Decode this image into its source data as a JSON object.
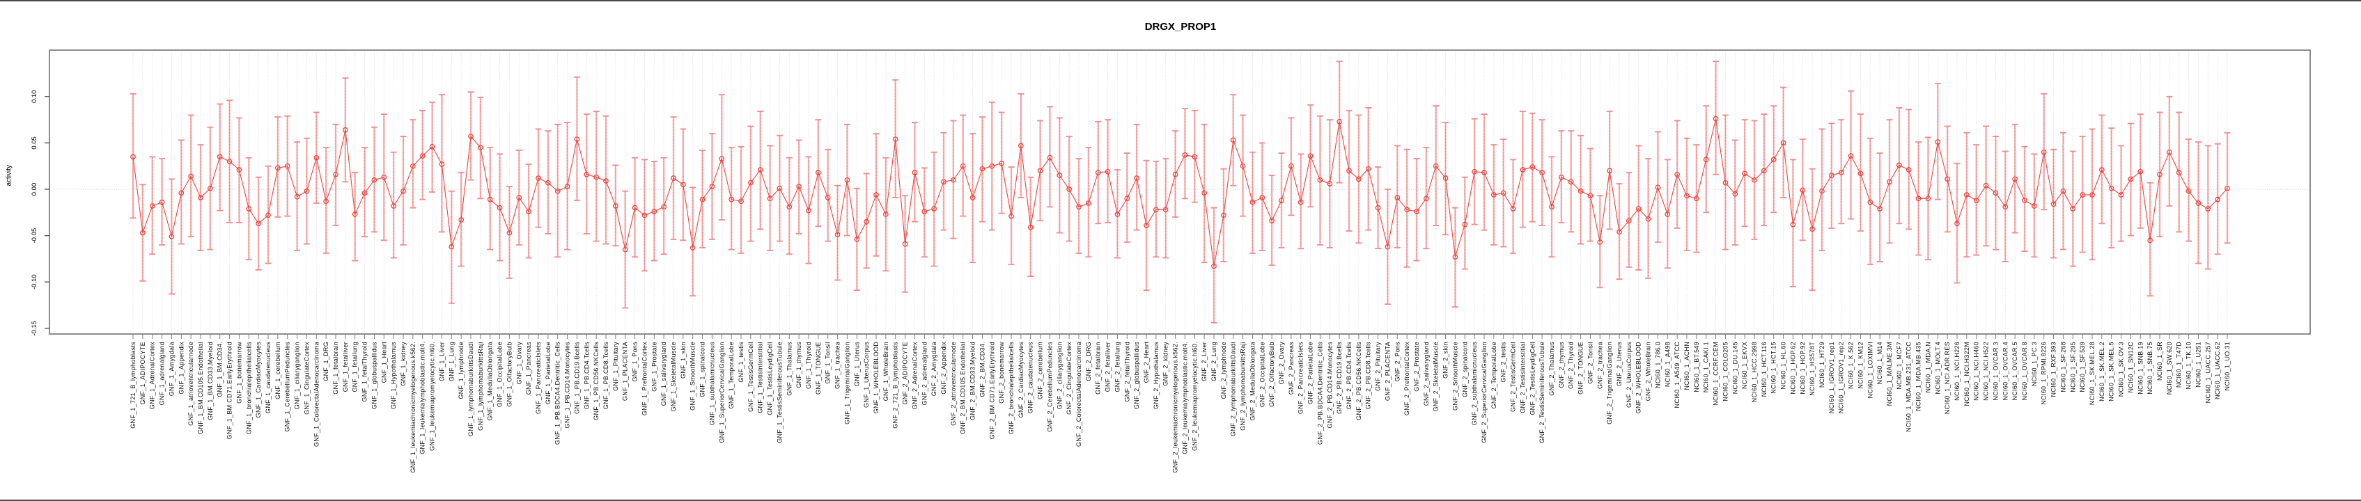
{
  "chart_data": {
    "type": "line",
    "title": "DRGX_PROP1",
    "xlabel": "",
    "ylabel": "activity",
    "ylim": [
      -0.175,
      0.135
    ],
    "y_ticks": [
      0.1,
      0.05,
      0.0,
      -0.05,
      -0.1,
      -0.15
    ],
    "y_tick_labels": [
      "0.10",
      "0.05",
      "0.00",
      "-0.05",
      "-0.10",
      "-0.15"
    ],
    "grid": "vertical-dotted-per-category-plus-zero-line",
    "legend_position": "none",
    "error_bars": true,
    "marker": "open-circle",
    "colors": {
      "series": "#ef423c",
      "error_bar": "#f5a3a3",
      "error_cap": "#f28b8b",
      "gridline": "#d4d4d4",
      "frame": "#8c8c8c",
      "tick": "#7f7f7f",
      "text": "#000000"
    },
    "categories": [
      "GNF_1_721_B_lymphoblasts",
      "GNF_1_ADIPOCYTE",
      "GNF_1_AdrenalCortex",
      "GNF_1_adrenalgland",
      "GNF_1_Amygdala",
      "GNF_1_Appendix",
      "GNF_1_atrioventricularnode",
      "GNF_1_BM.CD105.Endothelial",
      "GNF_1_BM.CD33.Myeloid",
      "GNF_1_BM.CD34.",
      "GNF_1_BM.CD71.EarlyErythroid",
      "GNF_1_bonemarrow",
      "GNF_1_bronchialepithelialcells",
      "GNF_1_CardiacMyocytes",
      "GNF_1_caudatenucleus",
      "GNF_1_cerebellum",
      "GNF_1_CerebellumPeduncles",
      "GNF_1_ciliaryganglion",
      "GNF_1_CingulateCortex",
      "GNF_1_ColorectalAdenocarcinoma",
      "GNF_1_DRG",
      "GNF_1_fetalbrain",
      "GNF_1_fetalliver",
      "GNF_1_fetallung",
      "GNF_1_fetalThyroid",
      "GNF_1_globuspallidus",
      "GNF_1_Heart",
      "GNF_1_Hypothalamus",
      "GNF_1_kidney",
      "GNF_1_leukemiachronicmyelogenous.k562.",
      "GNF_1_leukemialymphoblastic.molt4.",
      "GNF_1_leukemiapromyelocytic.hl60.",
      "GNF_1_Liver",
      "GNF_1_Lung",
      "GNF_1_lymphnode",
      "GNF_1_lymphomaburkittsDaudi",
      "GNF_1_lymphomaburkittsRaji",
      "GNF_1_MedullaOblongata",
      "GNF_1_OccipitalLobe",
      "GNF_1_OlfactoryBulb",
      "GNF_1_Ovary",
      "GNF_1_Pancreas",
      "GNF_1_PancreaticIslets",
      "GNF_1_ParietalLobe",
      "GNF_1_PB.BDCA4.Dentritic_Cells",
      "GNF_1_PB.CD14.Monocytes",
      "GNF_1_PB.CD19.Bcells",
      "GNF_1_PB.CD4.Tcells",
      "GNF_1_PB.CD56.NKCells",
      "GNF_1_PB.CD8.Tcells",
      "GNF_1_Pituitary",
      "GNF_1_PLACENTA",
      "GNF_1_Pons",
      "GNF_1_PrefrontalCortex",
      "GNF_1_Prostate",
      "GNF_1_salivarygland",
      "GNF_1_SkeletalMuscle",
      "GNF_1_skin",
      "GNF_1_SmoothMuscle",
      "GNF_1_spinalcord",
      "GNF_1_subthalamicnucleus",
      "GNF_1_SuperiorCervicalGanglion",
      "GNF_1_TemporalLobe",
      "GNF_1_testis",
      "GNF_1_TestisGermCell",
      "GNF_1_TestisInterstitial",
      "GNF_1_TestisLeydigCell",
      "GNF_1_TestisSeminiferousTubule",
      "GNF_1_Thalamus",
      "GNF_1_thymus",
      "GNF_1_Thyroid",
      "GNF_1_TONGUE",
      "GNF_1_Tonsil",
      "GNF_1_trachea",
      "GNF_1_TrigeminalGanglion",
      "GNF_1_Uterus",
      "GNF_1_UterusCorpus",
      "GNF_1_WHOLEBLOOD",
      "GNF_1_WholeBrain",
      "GNF_2_721_B_lymphoblasts",
      "GNF_2_ADIPOCYTE",
      "GNF_2_AdrenalCortex",
      "GNF_2_adrenalgland",
      "GNF_2_Amygdala",
      "GNF_2_Appendix",
      "GNF_2_atrioventricularnode",
      "GNF_2_BM.CD105.Endothelial",
      "GNF_2_BM.CD33.Myeloid",
      "GNF_2_BM.CD34.",
      "GNF_2_BM.CD71.EarlyErythroid",
      "GNF_2_bonemarrow",
      "GNF_2_bronchialepithelialcells",
      "GNF_2_CardiacMyocytes",
      "GNF_2_caudatenucleus",
      "GNF_2_cerebellum",
      "GNF_2_CerebellumPeduncles",
      "GNF_2_ciliaryganglion",
      "GNF_2_CingulateCortex",
      "GNF_2_ColorectalAdenocarcinoma",
      "GNF_2_DRG",
      "GNF_2_fetalbrain",
      "GNF_2_fetalliver",
      "GNF_2_fetallung",
      "GNF_2_fetalThyroid",
      "GNF_2_globuspallidus",
      "GNF_2_Heart",
      "GNF_2_Hypothalamus",
      "GNF_2_kidney",
      "GNF_2_leukemiachronicmyelogenous.k562.",
      "GNF_2_leukemialymphoblastic.molt4.",
      "GNF_2_leukemiapromyelocytic.hl60.",
      "GNF_2_Liver",
      "GNF_2_Lung",
      "GNF_2_lymphnode",
      "GNF_2_lymphomaburkittsDaudi",
      "GNF_2_lymphomaburkittsRaji",
      "GNF_2_MedullaOblongata",
      "GNF_2_OccipitalLobe",
      "GNF_2_OlfactoryBulb",
      "GNF_2_Ovary",
      "GNF_2_Pancreas",
      "GNF_2_PancreaticIslets",
      "GNF_2_ParietalLobe",
      "GNF_2_PB.BDCA4.Dentritic_Cells",
      "GNF_2_PB.CD14.Monocytes",
      "GNF_2_PB.CD19.Bcells",
      "GNF_2_PB.CD4.Tcells",
      "GNF_2_PB.CD56.NKCells",
      "GNF_2_PB.CD8.Tcells",
      "GNF_2_Pituitary",
      "GNF_2_PLACENTA",
      "GNF_2_Pons",
      "GNF_2_PrefrontalCortex",
      "GNF_2_Prostate",
      "GNF_2_salivarygland",
      "GNF_2_SkeletalMuscle",
      "GNF_2_skin",
      "GNF_2_SmoothMuscle",
      "GNF_2_spinalcord",
      "GNF_2_subthalamicnucleus",
      "GNF_2_SuperiorCervicalGanglion",
      "GNF_2_TemporalLobe",
      "GNF_2_testis",
      "GNF_2_TestisGermCell",
      "GNF_2_TestisInterstitial",
      "GNF_2_TestisLeydigCell",
      "GNF_2_TestisSeminiferousTubule",
      "GNF_2_Thalamus",
      "GNF_2_thymus",
      "GNF_2_Thyroid",
      "GNF_2_TONGUE",
      "GNF_2_Tonsil",
      "GNF_2_trachea",
      "GNF_2_TrigeminalGanglion",
      "GNF_2_Uterus",
      "GNF_2_UterusCorpus",
      "GNF_2_WHOLEBLOOD",
      "GNF_2_WholeBrain",
      "NCI60_1_786.0",
      "NCI60_1_A498",
      "NCI60_1_A549_ATCC",
      "NCI60_1_ACHN",
      "NCI60_1_BT.549",
      "NCI60_1_CAKI.1",
      "NCI60_1_CCRF.CEM",
      "NCI60_1_COLO205",
      "NCI60_1_DU.145",
      "NCI60_1_EKVX",
      "NCI60_1_HCC.2998",
      "NCI60_1_HCT.116",
      "NCI60_1_HCT.15",
      "NCI60_1_HL.60",
      "NCI60_1_HOP.62",
      "NCI60_1_HOP.92",
      "NCI60_1_HS578T",
      "NCI60_1_HT29",
      "NCI60_1_IGROV1_rep1",
      "NCI60_1_IGROV1_rep2",
      "NCI60_1_K.562",
      "NCI60_1_KM12",
      "NCI60_1_LOXIMVI",
      "NCI60_1_M14",
      "NCI60_1_MALME.3M",
      "NCI60_1_MCF7",
      "NCI60_1_MDA.MB.231_ATCC",
      "NCI60_1_MDA.MB.435",
      "NCI60_1_MDA.N",
      "NCI60_1_MOLT.4",
      "NCI60_1_NCI.ADR.RES",
      "NCI60_1_NCI.H226",
      "NCI60_1_NCI.H322M",
      "NCI60_1_NCI.H460",
      "NCI60_1_NCI.H522",
      "NCI60_1_OVCAR.3",
      "NCI60_1_OVCAR.4",
      "NCI60_1_OVCAR.5",
      "NCI60_1_OVCAR.8",
      "NCI60_1_PC.3",
      "NCI60_1_RPMI.8226",
      "NCI60_1_RXF.393",
      "NCI60_1_SF.268",
      "NCI60_1_SF.295",
      "NCI60_1_SF.539",
      "NCI60_1_SK.MEL.28",
      "NCI60_1_SK.MEL.2",
      "NCI60_1_SK.MEL.5",
      "NCI60_1_SK.OV.3",
      "NCI60_1_SN12C",
      "NCI60_1_SNB.19",
      "NCI60_1_SNB.75",
      "NCI60_1_SR",
      "NCI60_1_SW.620",
      "NCI60_1_T47D",
      "NCI60_1_TK.10",
      "NCI60_1_U251",
      "NCI60_1_UACC.257",
      "NCI60_1_UACC.62",
      "NCI60_1_UO.31"
    ],
    "values": [
      0.035,
      -0.047,
      -0.018,
      -0.014,
      -0.051,
      -0.004,
      0.014,
      -0.009,
      0.001,
      0.035,
      0.03,
      0.021,
      -0.021,
      -0.037,
      -0.028,
      0.023,
      0.025,
      -0.008,
      -0.002,
      0.034,
      -0.013,
      0.016,
      0.064,
      -0.027,
      -0.004,
      0.01,
      0.013,
      -0.018,
      -0.002,
      0.025,
      0.036,
      0.046,
      0.027,
      -0.062,
      -0.033,
      0.057,
      0.045,
      -0.011,
      -0.02,
      -0.047,
      -0.009,
      -0.024,
      0.012,
      0.007,
      -0.002,
      0.003,
      0.054,
      0.016,
      0.013,
      0.009,
      -0.018,
      -0.065,
      -0.02,
      -0.028,
      -0.024,
      -0.019,
      0.012,
      0.005,
      -0.063,
      -0.011,
      0.003,
      0.033,
      -0.011,
      -0.013,
      0.007,
      0.021,
      -0.01,
      0.001,
      -0.019,
      0.003,
      -0.023,
      0.018,
      -0.009,
      -0.049,
      0.01,
      -0.054,
      -0.035,
      -0.006,
      -0.027,
      0.054,
      -0.059,
      0.018,
      -0.024,
      -0.021,
      0.008,
      0.01,
      0.025,
      -0.009,
      0.022,
      0.025,
      0.028,
      -0.029,
      0.047,
      -0.041,
      0.02,
      0.034,
      0.015,
      0.0,
      -0.019,
      -0.015,
      0.018,
      0.019,
      -0.027,
      -0.01,
      0.012,
      -0.039,
      -0.022,
      -0.022,
      0.016,
      0.037,
      0.035,
      -0.004,
      -0.083,
      -0.028,
      0.053,
      0.025,
      -0.014,
      -0.009,
      -0.034,
      -0.012,
      0.025,
      -0.014,
      0.036,
      0.01,
      0.006,
      0.073,
      0.02,
      0.011,
      0.022,
      -0.02,
      -0.062,
      -0.009,
      -0.022,
      -0.024,
      -0.01,
      0.025,
      0.012,
      -0.073,
      -0.038,
      0.019,
      0.018,
      -0.006,
      -0.004,
      -0.021,
      0.021,
      0.024,
      0.018,
      -0.019,
      0.013,
      0.008,
      -0.002,
      -0.007,
      -0.057,
      0.02,
      -0.046,
      -0.034,
      -0.021,
      -0.032,
      0.002,
      -0.027,
      0.016,
      -0.007,
      -0.01,
      0.032,
      0.076,
      0.007,
      -0.005,
      0.017,
      0.01,
      0.02,
      0.032,
      0.05,
      -0.038,
      -0.001,
      -0.043,
      -0.002,
      0.015,
      0.018,
      0.036,
      0.017,
      -0.014,
      -0.021,
      0.008,
      0.026,
      0.021,
      -0.01,
      -0.01,
      0.051,
      0.011,
      -0.037,
      -0.006,
      -0.012,
      0.004,
      -0.004,
      -0.019,
      0.011,
      -0.012,
      -0.018,
      0.04,
      -0.016,
      -0.002,
      -0.021,
      -0.006,
      -0.006,
      0.021,
      0.001,
      -0.006,
      0.011,
      0.019,
      -0.055,
      0.016,
      0.04,
      0.018,
      -0.002,
      -0.015,
      -0.021,
      -0.011,
      0.001
    ],
    "err_lo": [
      -0.031,
      -0.099,
      -0.07,
      -0.06,
      -0.113,
      -0.059,
      -0.051,
      -0.066,
      -0.065,
      -0.023,
      -0.036,
      -0.036,
      -0.076,
      -0.087,
      -0.08,
      -0.03,
      -0.029,
      -0.066,
      -0.059,
      -0.015,
      -0.069,
      -0.039,
      0.008,
      -0.077,
      -0.051,
      -0.046,
      -0.055,
      -0.074,
      -0.06,
      -0.02,
      -0.011,
      -0.003,
      -0.046,
      -0.123,
      -0.083,
      0.01,
      -0.01,
      -0.065,
      -0.077,
      -0.096,
      -0.06,
      -0.074,
      -0.041,
      -0.048,
      -0.073,
      -0.065,
      -0.012,
      -0.048,
      -0.056,
      -0.059,
      -0.061,
      -0.128,
      -0.073,
      -0.088,
      -0.077,
      -0.07,
      -0.054,
      -0.055,
      -0.115,
      -0.063,
      -0.054,
      -0.033,
      -0.065,
      -0.069,
      -0.056,
      -0.043,
      -0.066,
      -0.056,
      -0.07,
      -0.048,
      -0.08,
      -0.04,
      -0.056,
      -0.098,
      -0.05,
      -0.109,
      -0.085,
      -0.072,
      -0.088,
      -0.009,
      -0.111,
      -0.035,
      -0.073,
      -0.083,
      -0.044,
      -0.053,
      -0.029,
      -0.079,
      -0.035,
      -0.044,
      -0.026,
      -0.081,
      -0.009,
      -0.094,
      -0.034,
      -0.019,
      -0.047,
      -0.056,
      -0.069,
      -0.073,
      -0.037,
      -0.036,
      -0.074,
      -0.057,
      -0.044,
      -0.109,
      -0.073,
      -0.074,
      -0.03,
      -0.01,
      -0.014,
      -0.079,
      -0.144,
      -0.078,
      0.004,
      -0.029,
      -0.069,
      -0.066,
      -0.082,
      -0.063,
      -0.028,
      -0.064,
      -0.019,
      -0.06,
      -0.063,
      0.007,
      -0.045,
      -0.058,
      -0.044,
      -0.064,
      -0.124,
      -0.063,
      -0.084,
      -0.077,
      -0.064,
      -0.039,
      -0.049,
      -0.127,
      -0.086,
      -0.038,
      -0.044,
      -0.06,
      -0.062,
      -0.069,
      -0.041,
      -0.035,
      -0.039,
      -0.073,
      -0.036,
      -0.046,
      -0.059,
      -0.056,
      -0.106,
      -0.043,
      -0.097,
      -0.084,
      -0.087,
      -0.096,
      -0.057,
      -0.085,
      -0.042,
      -0.066,
      -0.068,
      -0.025,
      0.016,
      -0.065,
      -0.06,
      -0.04,
      -0.054,
      -0.039,
      -0.025,
      -0.009,
      -0.105,
      -0.055,
      -0.109,
      -0.066,
      -0.042,
      -0.037,
      -0.032,
      -0.045,
      -0.081,
      -0.078,
      -0.058,
      -0.037,
      -0.043,
      -0.071,
      -0.076,
      -0.011,
      -0.046,
      -0.101,
      -0.073,
      -0.071,
      -0.061,
      -0.065,
      -0.078,
      -0.047,
      -0.067,
      -0.073,
      -0.022,
      -0.074,
      -0.065,
      -0.083,
      -0.068,
      -0.076,
      -0.037,
      -0.063,
      -0.056,
      -0.05,
      -0.042,
      -0.115,
      -0.051,
      -0.018,
      -0.046,
      -0.056,
      -0.08,
      -0.086,
      -0.07,
      -0.058
    ],
    "err_hi": [
      0.103,
      0.005,
      0.035,
      0.033,
      0.011,
      0.053,
      0.08,
      0.048,
      0.067,
      0.092,
      0.096,
      0.077,
      0.034,
      0.013,
      0.025,
      0.078,
      0.079,
      0.051,
      0.055,
      0.083,
      0.045,
      0.07,
      0.12,
      0.018,
      0.045,
      0.067,
      0.081,
      0.04,
      0.057,
      0.075,
      0.085,
      0.094,
      0.102,
      -0.002,
      0.018,
      0.105,
      0.099,
      0.045,
      0.038,
      0.003,
      0.042,
      0.027,
      0.065,
      0.063,
      0.07,
      0.072,
      0.121,
      0.081,
      0.084,
      0.079,
      0.026,
      -0.002,
      0.034,
      0.032,
      0.03,
      0.034,
      0.078,
      0.065,
      0.002,
      0.042,
      0.06,
      0.102,
      0.045,
      0.046,
      0.068,
      0.084,
      0.047,
      0.058,
      0.034,
      0.053,
      0.035,
      0.075,
      0.043,
      0.004,
      0.07,
      0.001,
      0.017,
      0.06,
      0.034,
      0.118,
      -0.007,
      0.072,
      0.023,
      0.04,
      0.061,
      0.074,
      0.08,
      0.06,
      0.078,
      0.094,
      0.083,
      0.024,
      0.103,
      0.013,
      0.074,
      0.089,
      0.077,
      0.057,
      0.033,
      0.045,
      0.073,
      0.075,
      0.021,
      0.039,
      0.07,
      0.031,
      0.03,
      0.033,
      0.063,
      0.087,
      0.085,
      0.07,
      -0.02,
      0.022,
      0.102,
      0.08,
      0.04,
      0.05,
      0.015,
      0.039,
      0.077,
      0.038,
      0.091,
      0.079,
      0.075,
      0.138,
      0.085,
      0.08,
      0.088,
      0.024,
      0.0,
      0.047,
      0.043,
      0.033,
      0.045,
      0.09,
      0.072,
      -0.02,
      0.013,
      0.076,
      0.081,
      0.048,
      0.054,
      0.032,
      0.084,
      0.082,
      0.075,
      0.035,
      0.063,
      0.063,
      0.058,
      0.044,
      -0.007,
      0.084,
      0.006,
      0.018,
      0.047,
      0.033,
      0.062,
      0.032,
      0.074,
      0.055,
      0.048,
      0.09,
      0.138,
      0.08,
      0.053,
      0.075,
      0.074,
      0.081,
      0.09,
      0.11,
      0.032,
      0.054,
      0.022,
      0.065,
      0.071,
      0.075,
      0.106,
      0.081,
      0.055,
      0.039,
      0.075,
      0.088,
      0.086,
      0.051,
      0.056,
      0.114,
      0.068,
      0.028,
      0.061,
      0.048,
      0.068,
      0.057,
      0.041,
      0.07,
      0.046,
      0.038,
      0.103,
      0.043,
      0.061,
      0.041,
      0.057,
      0.065,
      0.08,
      0.066,
      0.047,
      0.071,
      0.081,
      0.007,
      0.083,
      0.1,
      0.083,
      0.054,
      0.051,
      0.047,
      0.049,
      0.061
    ]
  }
}
